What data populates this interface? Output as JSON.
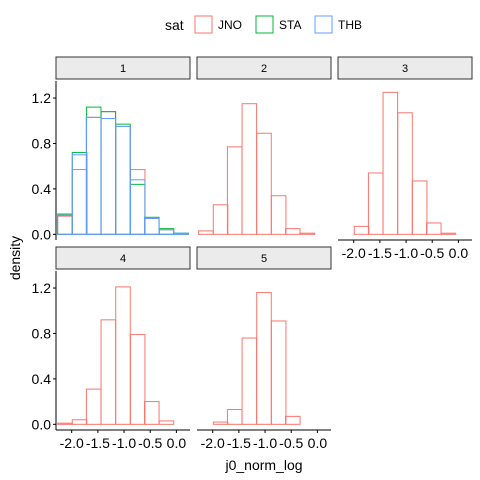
{
  "chart_data": {
    "type": "histogram",
    "xlabel": "j0_norm_log",
    "ylabel": "density",
    "legend": {
      "title": "sat",
      "position": "top",
      "entries": [
        {
          "name": "JNO",
          "color": "#F8766D"
        },
        {
          "name": "STA",
          "color": "#00BA38"
        },
        {
          "name": "THB",
          "color": "#619CFF"
        }
      ]
    },
    "x_ticks": [
      "-2.0",
      "-1.5",
      "-1.0",
      "-0.5",
      "0.0"
    ],
    "y_ticks": [
      "0.0",
      "0.4",
      "0.8",
      "1.2"
    ],
    "ylim": [
      0,
      1.3
    ],
    "bin_width": 0.278,
    "panels": [
      {
        "label": "1",
        "bin_centers": [
          -2.13,
          -1.85,
          -1.58,
          -1.3,
          -1.02,
          -0.74,
          -0.47,
          -0.19,
          0.09
        ],
        "series": [
          {
            "name": "JNO",
            "values": [
              0.16,
              0.57,
              1.03,
              1.08,
              0.95,
              0.57,
              0.14,
              0.04,
              0.0
            ]
          },
          {
            "name": "STA",
            "values": [
              0.17,
              0.72,
              1.12,
              1.08,
              0.97,
              0.44,
              0.15,
              0.05,
              0.01
            ]
          },
          {
            "name": "THB",
            "values": [
              0.18,
              0.7,
              1.03,
              1.02,
              0.95,
              0.48,
              0.14,
              0.04,
              0.01
            ]
          }
        ]
      },
      {
        "label": "2",
        "bin_centers": [
          -2.13,
          -1.85,
          -1.58,
          -1.3,
          -1.02,
          -0.74,
          -0.47,
          -0.19
        ],
        "series": [
          {
            "name": "JNO",
            "values": [
              0.03,
              0.26,
              0.77,
              1.15,
              0.89,
              0.34,
              0.05,
              0.01
            ]
          }
        ]
      },
      {
        "label": "3",
        "bin_centers": [
          -2.13,
          -1.85,
          -1.58,
          -1.3,
          -1.02,
          -0.74,
          -0.47,
          -0.19
        ],
        "series": [
          {
            "name": "JNO",
            "values": [
              0.0,
              0.07,
              0.54,
              1.25,
              1.07,
              0.47,
              0.1,
              0.01
            ]
          }
        ]
      },
      {
        "label": "4",
        "bin_centers": [
          -2.13,
          -1.85,
          -1.58,
          -1.3,
          -1.02,
          -0.74,
          -0.47,
          -0.19,
          0.09
        ],
        "series": [
          {
            "name": "JNO",
            "values": [
              0.01,
              0.04,
              0.31,
              0.92,
              1.21,
              0.79,
              0.2,
              0.03,
              0.0
            ]
          }
        ]
      },
      {
        "label": "5",
        "bin_centers": [
          -2.13,
          -1.85,
          -1.58,
          -1.3,
          -1.02,
          -0.74,
          -0.47,
          -0.19,
          0.09
        ],
        "series": [
          {
            "name": "JNO",
            "values": [
              0.0,
              0.02,
              0.13,
              0.76,
              1.16,
              0.91,
              0.07,
              0.0,
              0.0
            ]
          }
        ]
      }
    ]
  }
}
